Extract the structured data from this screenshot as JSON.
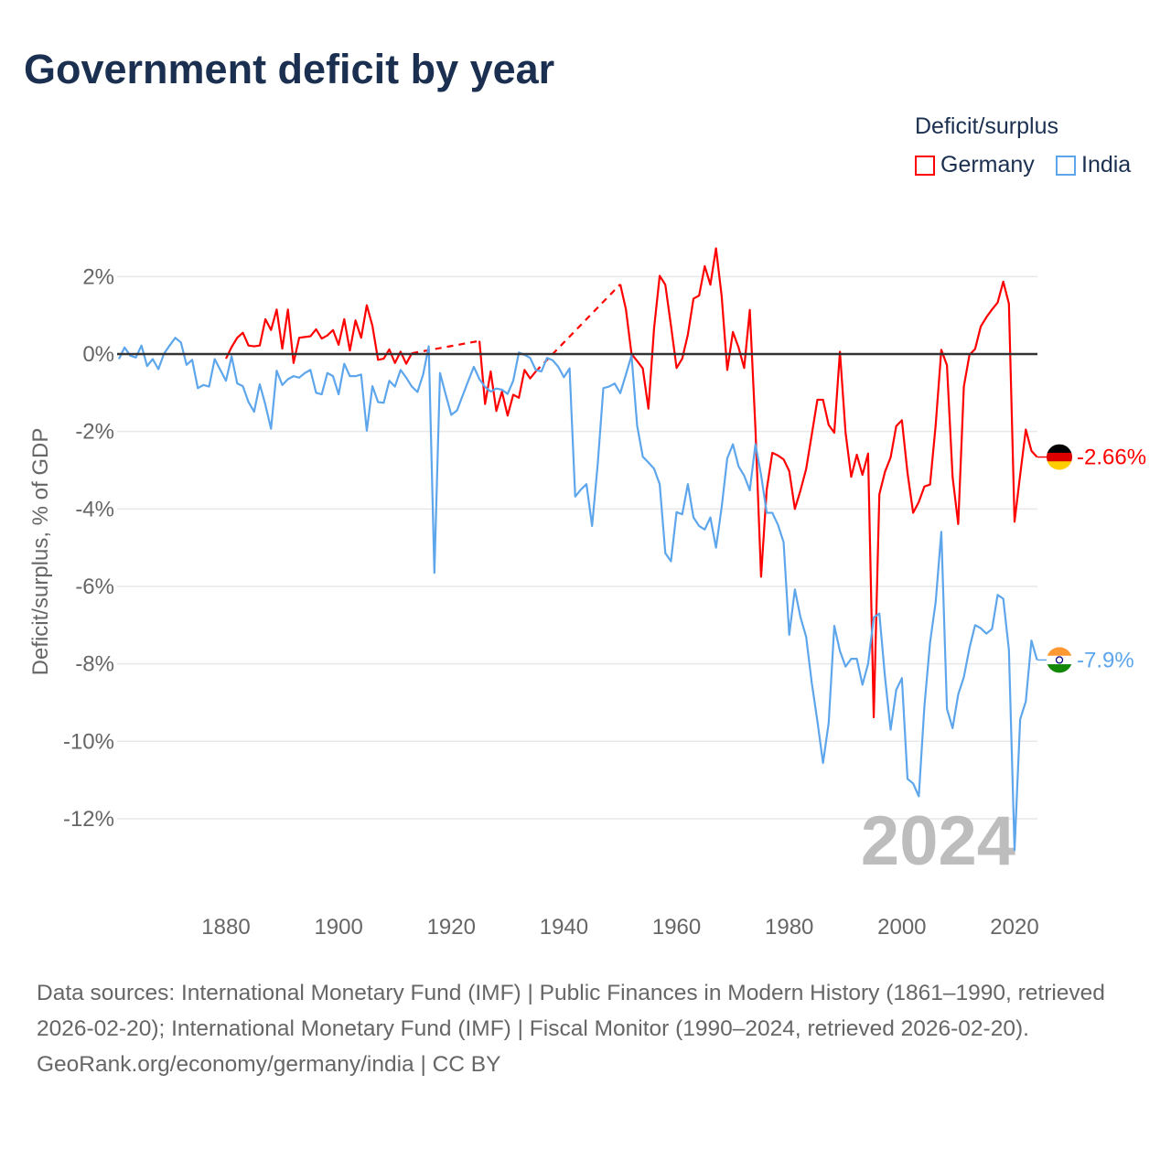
{
  "title": "Government deficit by year",
  "legend": {
    "title": "Deficit/surplus",
    "items": [
      {
        "name": "Germany",
        "color": "#ff0000"
      },
      {
        "name": "India",
        "color": "#5ea6ec"
      }
    ]
  },
  "year_watermark": "2024",
  "footer": {
    "sources": "Data sources: International Monetary Fund (IMF) | Public Finances in Modern History (1861–1990, retrieved 2026-02-20); International Monetary Fund (IMF) | Fiscal Monitor (1990–2024, retrieved 2026-02-20).",
    "credit": "GeoRank.org/economy/germany/india | CC BY"
  },
  "chart_data": {
    "type": "line",
    "title": "Government deficit by year",
    "xlabel": "",
    "ylabel": "Deficit/surplus, % of GDP",
    "xlim": [
      1861,
      2024
    ],
    "ylim": [
      -14,
      3
    ],
    "x_ticks": [
      "1880",
      "1900",
      "1920",
      "1940",
      "1960",
      "1980",
      "2000",
      "2020"
    ],
    "y_ticks": [
      {
        "v": 2,
        "label": "2%"
      },
      {
        "v": 0,
        "label": "0%"
      },
      {
        "v": -2,
        "label": "-2%"
      },
      {
        "v": -4,
        "label": "-4%"
      },
      {
        "v": -6,
        "label": "-6%"
      },
      {
        "v": -8,
        "label": "-8%"
      },
      {
        "v": -10,
        "label": "-10%"
      },
      {
        "v": -12,
        "label": "-12%"
      }
    ],
    "grid": true,
    "legend_position": "top-right",
    "gaps_drawn_dashed": true,
    "series": [
      {
        "name": "Germany",
        "color": "#ff0000",
        "end_label": "-2.66%",
        "start_year": 1880,
        "values": [
          -0.12,
          0.18,
          0.42,
          0.55,
          0.22,
          0.2,
          0.22,
          0.9,
          0.62,
          1.15,
          0.14,
          1.15,
          -0.23,
          0.42,
          0.44,
          0.46,
          0.64,
          0.4,
          0.48,
          0.62,
          0.24,
          0.9,
          0.09,
          0.87,
          0.42,
          1.26,
          0.73,
          -0.15,
          -0.12,
          0.12,
          -0.23,
          0.06,
          -0.25,
          0.02,
          null,
          null,
          null,
          null,
          null,
          null,
          null,
          null,
          null,
          null,
          null,
          0.34,
          -1.29,
          -0.45,
          -1.47,
          -0.97,
          -1.59,
          -1.05,
          -1.13,
          -0.41,
          -0.63,
          -0.45,
          null,
          null,
          null,
          null,
          null,
          null,
          null,
          null,
          null,
          null,
          null,
          null,
          null,
          null,
          1.8,
          1.16,
          0.0,
          -0.18,
          -0.37,
          -1.41,
          0.66,
          2.02,
          1.79,
          0.74,
          -0.36,
          -0.12,
          0.5,
          1.43,
          1.51,
          2.27,
          1.79,
          2.73,
          1.5,
          -0.41,
          0.57,
          0.17,
          -0.36,
          1.14,
          -1.93,
          -5.75,
          -3.5,
          -2.55,
          -2.62,
          -2.72,
          -3.02,
          -4.0,
          -3.52,
          -2.97,
          -2.08,
          -1.18,
          -1.18,
          -1.83,
          -2.03,
          0.06,
          -2.03,
          -3.17,
          -2.6,
          -3.12,
          -2.57,
          -9.38,
          -3.62,
          -3.04,
          -2.67,
          -1.86,
          -1.71,
          -3.07,
          -4.1,
          -3.82,
          -3.42,
          -3.37,
          -1.83,
          0.11,
          -0.29,
          -3.17,
          -4.39,
          -0.84,
          -0.02,
          0.13,
          0.71,
          0.95,
          1.15,
          1.33,
          1.87,
          1.3,
          -4.33,
          -3.12,
          -1.95,
          -2.5,
          -2.66
        ]
      },
      {
        "name": "India",
        "color": "#5ea6ec",
        "end_label": "-7.9%",
        "start_year": 1861,
        "values": [
          -0.13,
          0.17,
          -0.04,
          -0.09,
          0.22,
          -0.31,
          -0.13,
          -0.39,
          0.01,
          0.22,
          0.42,
          0.3,
          -0.28,
          -0.15,
          -0.88,
          -0.8,
          -0.84,
          -0.13,
          -0.41,
          -0.69,
          -0.06,
          -0.76,
          -0.83,
          -1.24,
          -1.49,
          -0.78,
          -1.31,
          -1.93,
          -0.43,
          -0.8,
          -0.65,
          -0.57,
          -0.61,
          -0.49,
          -0.41,
          -1.0,
          -1.04,
          -0.49,
          -0.57,
          -1.04,
          -0.25,
          -0.57,
          -0.57,
          -0.53,
          -1.98,
          -0.83,
          -1.24,
          -1.26,
          -0.69,
          -0.84,
          -0.41,
          -0.61,
          -0.84,
          -0.98,
          -0.53,
          0.2,
          -5.65,
          -0.49,
          -1.04,
          -1.57,
          -1.46,
          -1.08,
          -0.7,
          -0.33,
          -0.65,
          -0.85,
          -0.97,
          -0.89,
          -0.92,
          -1.03,
          -0.69,
          0.04,
          -0.02,
          -0.1,
          -0.41,
          -0.45,
          -0.1,
          -0.16,
          -0.33,
          -0.6,
          -0.37,
          -3.68,
          -3.5,
          -3.36,
          -4.44,
          -2.84,
          -0.88,
          -0.84,
          -0.76,
          -1.01,
          -0.53,
          -0.04,
          -1.85,
          -2.65,
          -2.8,
          -2.96,
          -3.36,
          -5.14,
          -5.35,
          -4.08,
          -4.14,
          -3.36,
          -4.22,
          -4.44,
          -4.53,
          -4.22,
          -5.0,
          -3.96,
          -2.69,
          -2.33,
          -2.9,
          -3.14,
          -3.52,
          -2.33,
          -3.12,
          -4.1,
          -4.1,
          -4.41,
          -4.86,
          -7.25,
          -6.08,
          -6.8,
          -7.3,
          -8.49,
          -9.48,
          -10.56,
          -9.53,
          -7.02,
          -7.67,
          -8.07,
          -7.87,
          -7.87,
          -8.54,
          -8.0,
          -6.8,
          -6.7,
          -8.34,
          -9.7,
          -8.67,
          -8.37,
          -10.97,
          -11.09,
          -11.42,
          -9.09,
          -7.45,
          -6.4,
          -4.59,
          -9.16,
          -9.66,
          -8.79,
          -8.34,
          -7.59,
          -7.0,
          -7.08,
          -7.22,
          -7.1,
          -6.22,
          -6.32,
          -7.64,
          -12.81,
          -9.43,
          -8.97,
          -7.4,
          -7.9
        ]
      }
    ]
  }
}
